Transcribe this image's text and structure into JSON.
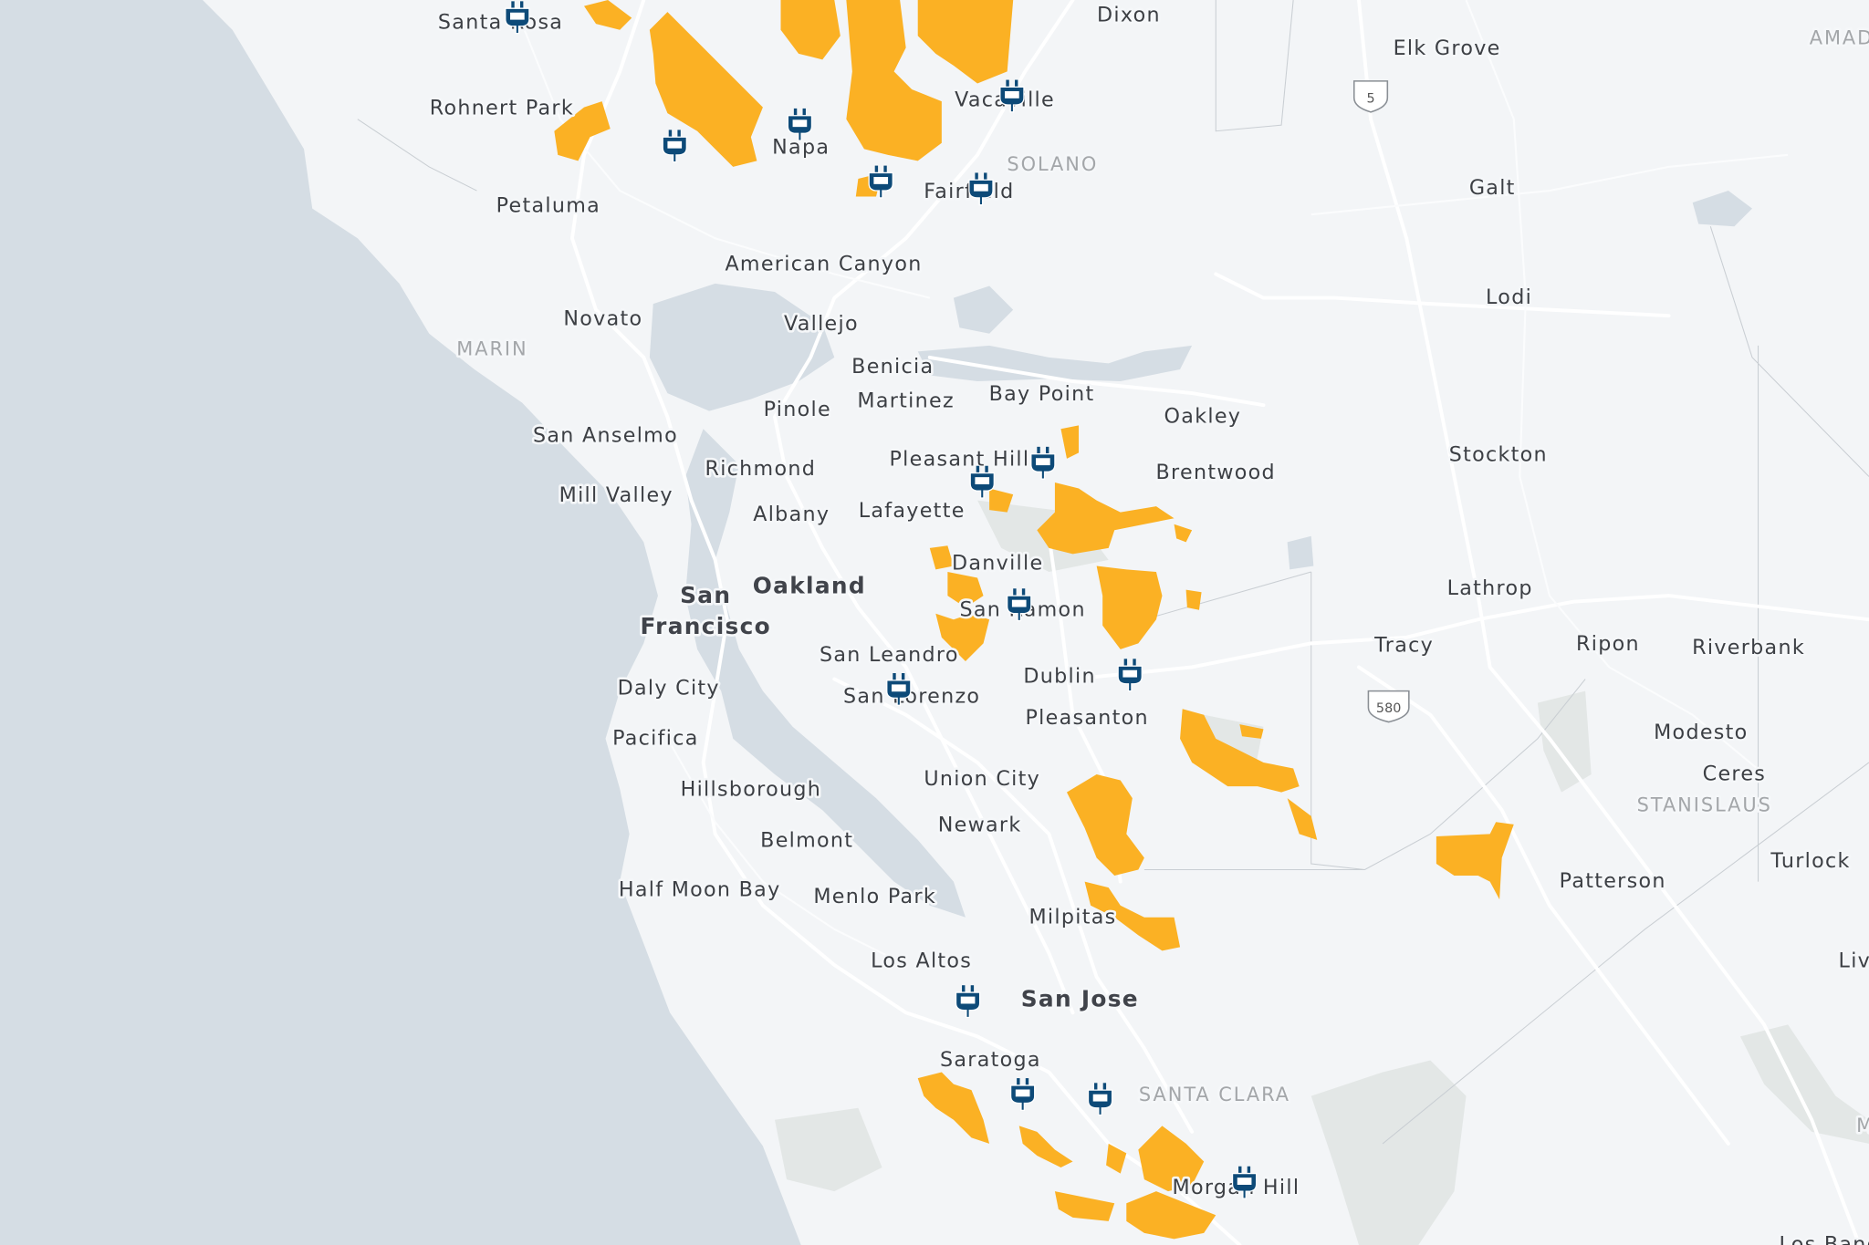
{
  "map": {
    "colors": {
      "land": "#f3f5f7",
      "water": "#d5dde4",
      "park": "#e3e7e6",
      "service_area": "#fbb124",
      "charging_station": "#0d4a78"
    },
    "marker_icon": "ev-plug-icon",
    "places": [
      "Santa Rosa",
      "Elk Grove",
      "Dixon",
      "Rohnert Park",
      "Vacaville",
      "Napa",
      "SOLANO",
      "Fairfield",
      "Galt",
      "Petaluma",
      "American Canyon",
      "Lodi",
      "Novato",
      "Vallejo",
      "MARIN",
      "Benicia",
      "Bay Point",
      "Pinole",
      "Martinez",
      "Oakley",
      "San Anselmo",
      "Stockton",
      "Pleasant Hill",
      "Richmond",
      "Brentwood",
      "Mill Valley",
      "Albany",
      "Lafayette",
      "Danville",
      "Lathrop",
      "San",
      "Francisco",
      "Oakland",
      "San Ramon",
      "Tracy",
      "Ripon",
      "Riverbank",
      "San Leandro",
      "Dublin",
      "Daly City",
      "San Lorenzo",
      "Pleasanton",
      "Modesto",
      "Pacifica",
      "Ceres",
      "Union City",
      "STANISLAUS",
      "Hillsborough",
      "Newark",
      "Belmont",
      "Turlock",
      "Patterson",
      "Half Moon Bay",
      "Menlo Park",
      "Milpitas",
      "Los Altos",
      "San Jose",
      "Liv",
      "Saratoga",
      "SANTA CLARA",
      "Morgan Hill",
      "Los Banos",
      "AMAD",
      "M"
    ],
    "highway_shields": [
      "5",
      "580"
    ]
  }
}
